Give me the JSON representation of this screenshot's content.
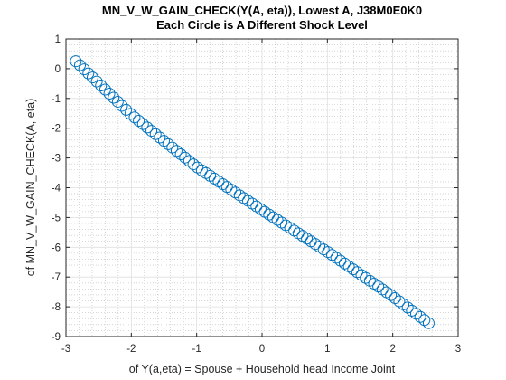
{
  "chart_data": {
    "type": "scatter",
    "title": "MN_V_W_GAIN_CHECK(Y(A, eta)), Lowest A, J38M0E0K0",
    "subtitle": "Each Circle is A Different Shock Level",
    "xlabel": "of Y(a,eta) = Spouse + Household head Income Joint",
    "ylabel": "of MN_V_W_GAIN_CHECK(A, eta)",
    "xlim": [
      -3,
      3
    ],
    "ylim": [
      -9,
      1
    ],
    "xticks": [
      "-3",
      "-2",
      "-1",
      "0",
      "1",
      "2",
      "3"
    ],
    "yticks": [
      "1",
      "0",
      "-1",
      "-2",
      "-3",
      "-4",
      "-5",
      "-6",
      "-7",
      "-8",
      "-9"
    ],
    "grid": true,
    "minor_grid": true,
    "marker": "circle",
    "color": "#0072BD",
    "series": [
      {
        "x_start": -2.85,
        "x_end": 2.55,
        "count": 85,
        "points": [
          [
            -2.85,
            0.25
          ],
          [
            -2.0,
            -1.55
          ],
          [
            -1.0,
            -3.3
          ],
          [
            0.0,
            -4.75
          ],
          [
            1.0,
            -6.15
          ],
          [
            2.0,
            -7.65
          ],
          [
            2.55,
            -8.55
          ]
        ]
      }
    ]
  }
}
